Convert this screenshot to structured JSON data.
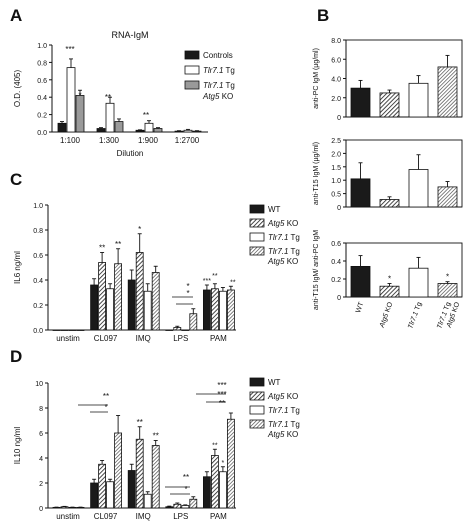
{
  "panel_letters": {
    "A": "A",
    "B": "B",
    "C": "C",
    "D": "D"
  },
  "chart_data": [
    {
      "id": "A",
      "type": "bar",
      "title": "RNA-IgM",
      "ylabel": "O.D. (405)",
      "xlabel": "Dilution",
      "ylim": [
        0,
        1.0
      ],
      "yticks": [
        "0.0",
        "0.2",
        "0.4",
        "0.6",
        "0.8",
        "1.0"
      ],
      "categories": [
        "1:100",
        "1:300",
        "1:900",
        "1:2700"
      ],
      "legend": [
        "Controls",
        "Tlr7.1 Tg",
        "Tlr7.1 Tg",
        "Atg5 KO"
      ],
      "series": [
        {
          "name": "Controls",
          "fill": "#1a1a1a",
          "values": [
            0.1,
            0.04,
            0.02,
            0.01
          ],
          "err": [
            0.02,
            0.01,
            0.005,
            0.005
          ]
        },
        {
          "name": "Tlr7.1 Tg",
          "fill": "#ffffff",
          "values": [
            0.74,
            0.33,
            0.1,
            0.02
          ],
          "err": [
            0.1,
            0.07,
            0.03,
            0.01
          ]
        },
        {
          "name": "Tlr7.1 Tg Atg5 KO",
          "fill": "#9a9a9a",
          "values": [
            0.42,
            0.12,
            0.04,
            0.01
          ],
          "err": [
            0.06,
            0.03,
            0.01,
            0.005
          ]
        }
      ],
      "annotations": [
        "***",
        "*",
        "**",
        "**"
      ]
    },
    {
      "id": "B",
      "type": "bar",
      "subplots": [
        {
          "ylabel": "anti-PC IgM (µg/ml)",
          "ylim": [
            0,
            8
          ],
          "yticks": [
            "0",
            "2.0",
            "4.0",
            "6.0",
            "8.0"
          ],
          "values": [
            3.0,
            2.5,
            3.5,
            5.2
          ],
          "err": [
            0.8,
            0.3,
            0.8,
            1.2
          ],
          "stars": [
            "",
            "",
            "",
            ""
          ]
        },
        {
          "ylabel": "anti-T15 IgM (µg/ml)",
          "ylim": [
            0,
            2.5
          ],
          "yticks": [
            "0",
            "0.5",
            "1.0",
            "1.5",
            "2.0",
            "2.5"
          ],
          "values": [
            1.05,
            0.28,
            1.4,
            0.75
          ],
          "err": [
            0.6,
            0.1,
            0.55,
            0.2
          ],
          "stars": [
            "",
            "",
            "",
            ""
          ]
        },
        {
          "ylabel": "anti-T15 IgM/ anti-PC IgM",
          "ylim": [
            0,
            0.6
          ],
          "yticks": [
            "0",
            "0.2",
            "0.4",
            "0.6"
          ],
          "values": [
            0.34,
            0.12,
            0.32,
            0.15
          ],
          "err": [
            0.12,
            0.03,
            0.12,
            0.02
          ],
          "stars": [
            "",
            "*",
            "",
            "*"
          ]
        }
      ],
      "categories": [
        "WT",
        "Atg5 KO",
        "Tlr7.1 Tg",
        "Tlr7.1 Tg Atg5 KO"
      ],
      "fills": [
        "#1a1a1a",
        "#555555",
        "#ffffff",
        "#8c8c8c"
      ]
    },
    {
      "id": "C",
      "type": "bar",
      "ylabel": "IL6 ng/ml",
      "ylim": [
        0,
        1.0
      ],
      "yticks": [
        "0.0",
        "0.2",
        "0.4",
        "0.6",
        "0.8",
        "1.0"
      ],
      "categories": [
        "unstim",
        "CL097",
        "IMQ",
        "LPS",
        "PAM"
      ],
      "legend": [
        "WT",
        "Atg5 KO",
        "Tlr7.1 Tg",
        "Tlr7.1 Tg Atg5 KO"
      ],
      "series": [
        {
          "name": "WT",
          "values": [
            0.0,
            0.36,
            0.4,
            0.0,
            0.32
          ],
          "err": [
            0,
            0.05,
            0.08,
            0,
            0.04
          ]
        },
        {
          "name": "Atg5 KO",
          "values": [
            0.0,
            0.54,
            0.62,
            0.02,
            0.33
          ],
          "err": [
            0,
            0.08,
            0.15,
            0.01,
            0.04
          ]
        },
        {
          "name": "Tlr7.1 Tg",
          "values": [
            0.0,
            0.33,
            0.31,
            0.0,
            0.31
          ],
          "err": [
            0,
            0.04,
            0.06,
            0,
            0.03
          ]
        },
        {
          "name": "Tlr7.1 Tg Atg5 KO",
          "values": [
            0.0,
            0.53,
            0.46,
            0.13,
            0.32
          ],
          "err": [
            0,
            0.12,
            0.05,
            0.04,
            0.03
          ]
        }
      ],
      "annotations": [
        "**",
        "**",
        "*",
        "*",
        "*",
        "***",
        "**",
        "**"
      ]
    },
    {
      "id": "D",
      "type": "bar",
      "ylabel": "IL10 ng/ml",
      "ylim": [
        0,
        10
      ],
      "yticks": [
        "0",
        "2",
        "4",
        "6",
        "8",
        "10"
      ],
      "categories": [
        "unstim",
        "CL097",
        "IMQ",
        "LPS",
        "PAM"
      ],
      "legend": [
        "WT",
        "Atg5 KO",
        "Tlr7.1 Tg",
        "Tlr7.1 Tg Atg5 KO"
      ],
      "series": [
        {
          "name": "WT",
          "values": [
            0.05,
            2.0,
            3.0,
            0.1,
            2.5
          ],
          "err": [
            0.02,
            0.3,
            0.5,
            0.05,
            0.4
          ]
        },
        {
          "name": "Atg5 KO",
          "values": [
            0.1,
            3.5,
            5.5,
            0.3,
            4.2
          ],
          "err": [
            0.03,
            0.3,
            1.0,
            0.1,
            0.5
          ]
        },
        {
          "name": "Tlr7.1 Tg",
          "values": [
            0.05,
            2.1,
            1.1,
            0.2,
            2.9
          ],
          "err": [
            0.02,
            0.2,
            0.2,
            0.05,
            0.4
          ]
        },
        {
          "name": "Tlr7.1 Tg Atg5 KO",
          "values": [
            0.05,
            6.0,
            5.0,
            0.7,
            7.1
          ],
          "err": [
            0.02,
            1.4,
            0.4,
            0.2,
            0.5
          ]
        }
      ],
      "annotations": [
        "**",
        "*",
        "**",
        "**",
        "**",
        "*",
        "***",
        "***",
        "**",
        "**",
        "*"
      ]
    }
  ]
}
